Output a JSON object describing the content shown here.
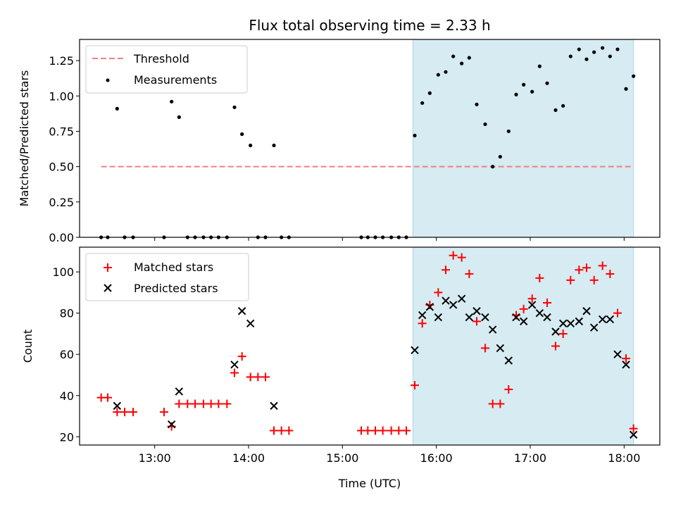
{
  "chart_data": {
    "type": "scatter",
    "title": "Flux total observing time = 2.33 h",
    "xlabel": "Time (UTC)",
    "x_ticks": [
      "13:00",
      "14:00",
      "15:00",
      "16:00",
      "17:00",
      "18:00"
    ],
    "x_tick_hours": [
      13,
      14,
      15,
      16,
      17,
      18
    ],
    "xlim_hours": [
      12.2,
      18.38
    ],
    "shaded_region_hours": [
      15.75,
      18.1
    ],
    "shade_color": "#add8e6",
    "panels": [
      {
        "ylabel": "Matched/Predicted stars",
        "ylim": [
          0,
          1.4
        ],
        "y_ticks": [
          "0.00",
          "0.25",
          "0.50",
          "0.75",
          "1.00",
          "1.25"
        ],
        "y_tick_values": [
          0,
          0.25,
          0.5,
          0.75,
          1.0,
          1.25
        ],
        "legend": [
          "Threshold",
          "Measurements"
        ],
        "threshold": {
          "name": "Threshold",
          "value": 0.5,
          "x_range_hours": [
            12.43,
            18.1
          ],
          "color": "#f08080"
        },
        "measurements": {
          "name": "Measurements",
          "color": "#000000",
          "points": [
            [
              12.43,
              0.0
            ],
            [
              12.5,
              0.0
            ],
            [
              12.6,
              0.91
            ],
            [
              12.68,
              0.0
            ],
            [
              12.77,
              0.0
            ],
            [
              13.1,
              0.0
            ],
            [
              13.18,
              0.96
            ],
            [
              13.26,
              0.85
            ],
            [
              13.35,
              0.0
            ],
            [
              13.43,
              0.0
            ],
            [
              13.52,
              0.0
            ],
            [
              13.6,
              0.0
            ],
            [
              13.68,
              0.0
            ],
            [
              13.77,
              0.0
            ],
            [
              13.85,
              0.92
            ],
            [
              13.93,
              0.73
            ],
            [
              14.02,
              0.65
            ],
            [
              14.1,
              0.0
            ],
            [
              14.18,
              0.0
            ],
            [
              14.27,
              0.65
            ],
            [
              14.35,
              0.0
            ],
            [
              14.43,
              0.0
            ],
            [
              15.2,
              0.0
            ],
            [
              15.27,
              0.0
            ],
            [
              15.35,
              0.0
            ],
            [
              15.43,
              0.0
            ],
            [
              15.52,
              0.0
            ],
            [
              15.6,
              0.0
            ],
            [
              15.68,
              0.0
            ],
            [
              15.77,
              0.72
            ],
            [
              15.85,
              0.95
            ],
            [
              15.93,
              1.02
            ],
            [
              16.02,
              1.15
            ],
            [
              16.1,
              1.17
            ],
            [
              16.18,
              1.28
            ],
            [
              16.27,
              1.23
            ],
            [
              16.35,
              1.27
            ],
            [
              16.43,
              0.94
            ],
            [
              16.52,
              0.8
            ],
            [
              16.6,
              0.5
            ],
            [
              16.68,
              0.57
            ],
            [
              16.77,
              0.75
            ],
            [
              16.85,
              1.01
            ],
            [
              16.93,
              1.08
            ],
            [
              17.02,
              1.03
            ],
            [
              17.1,
              1.21
            ],
            [
              17.18,
              1.09
            ],
            [
              17.27,
              0.9
            ],
            [
              17.35,
              0.93
            ],
            [
              17.43,
              1.28
            ],
            [
              17.52,
              1.33
            ],
            [
              17.6,
              1.26
            ],
            [
              17.68,
              1.31
            ],
            [
              17.77,
              1.34
            ],
            [
              17.85,
              1.28
            ],
            [
              17.93,
              1.33
            ],
            [
              18.02,
              1.05
            ],
            [
              18.1,
              1.14
            ]
          ]
        }
      },
      {
        "ylabel": "Count",
        "ylim": [
          16,
          112
        ],
        "y_ticks": [
          "20",
          "40",
          "60",
          "80",
          "100"
        ],
        "y_tick_values": [
          20,
          40,
          60,
          80,
          100
        ],
        "legend": [
          "Matched stars",
          "Predicted stars"
        ],
        "matched": {
          "name": "Matched stars",
          "color": "#ff0000",
          "points": [
            [
              12.43,
              39
            ],
            [
              12.5,
              39
            ],
            [
              12.6,
              32
            ],
            [
              12.68,
              32
            ],
            [
              12.77,
              32
            ],
            [
              13.1,
              32
            ],
            [
              13.18,
              25
            ],
            [
              13.26,
              36
            ],
            [
              13.35,
              36
            ],
            [
              13.43,
              36
            ],
            [
              13.52,
              36
            ],
            [
              13.6,
              36
            ],
            [
              13.68,
              36
            ],
            [
              13.77,
              36
            ],
            [
              13.85,
              51
            ],
            [
              13.93,
              59
            ],
            [
              14.02,
              49
            ],
            [
              14.1,
              49
            ],
            [
              14.18,
              49
            ],
            [
              14.27,
              23
            ],
            [
              14.35,
              23
            ],
            [
              14.43,
              23
            ],
            [
              15.2,
              23
            ],
            [
              15.27,
              23
            ],
            [
              15.35,
              23
            ],
            [
              15.43,
              23
            ],
            [
              15.52,
              23
            ],
            [
              15.6,
              23
            ],
            [
              15.68,
              23
            ],
            [
              15.77,
              45
            ],
            [
              15.85,
              75
            ],
            [
              15.93,
              84
            ],
            [
              16.02,
              90
            ],
            [
              16.1,
              101
            ],
            [
              16.18,
              108
            ],
            [
              16.27,
              107
            ],
            [
              16.35,
              99
            ],
            [
              16.43,
              76
            ],
            [
              16.52,
              63
            ],
            [
              16.6,
              36
            ],
            [
              16.68,
              36
            ],
            [
              16.77,
              43
            ],
            [
              16.85,
              79
            ],
            [
              16.93,
              82
            ],
            [
              17.02,
              87
            ],
            [
              17.1,
              97
            ],
            [
              17.18,
              85
            ],
            [
              17.27,
              64
            ],
            [
              17.35,
              70
            ],
            [
              17.43,
              96
            ],
            [
              17.52,
              101
            ],
            [
              17.6,
              102
            ],
            [
              17.68,
              96
            ],
            [
              17.77,
              103
            ],
            [
              17.85,
              99
            ],
            [
              17.93,
              80
            ],
            [
              18.02,
              58
            ],
            [
              18.1,
              24
            ]
          ]
        },
        "predicted": {
          "name": "Predicted stars",
          "color": "#000000",
          "points": [
            [
              12.6,
              35
            ],
            [
              13.18,
              26
            ],
            [
              13.26,
              42
            ],
            [
              13.85,
              55
            ],
            [
              13.93,
              81
            ],
            [
              14.02,
              75
            ],
            [
              14.27,
              35
            ],
            [
              15.77,
              62
            ],
            [
              15.85,
              79
            ],
            [
              15.93,
              83
            ],
            [
              16.02,
              78
            ],
            [
              16.1,
              86
            ],
            [
              16.18,
              84
            ],
            [
              16.27,
              87
            ],
            [
              16.35,
              78
            ],
            [
              16.43,
              81
            ],
            [
              16.52,
              78
            ],
            [
              16.6,
              72
            ],
            [
              16.68,
              63
            ],
            [
              16.77,
              57
            ],
            [
              16.85,
              78
            ],
            [
              16.93,
              76
            ],
            [
              17.02,
              84
            ],
            [
              17.1,
              80
            ],
            [
              17.18,
              78
            ],
            [
              17.27,
              71
            ],
            [
              17.35,
              75
            ],
            [
              17.43,
              75
            ],
            [
              17.52,
              76
            ],
            [
              17.6,
              81
            ],
            [
              17.68,
              73
            ],
            [
              17.77,
              77
            ],
            [
              17.85,
              77
            ],
            [
              17.93,
              60
            ],
            [
              18.02,
              55
            ],
            [
              18.1,
              21
            ]
          ]
        }
      }
    ]
  }
}
